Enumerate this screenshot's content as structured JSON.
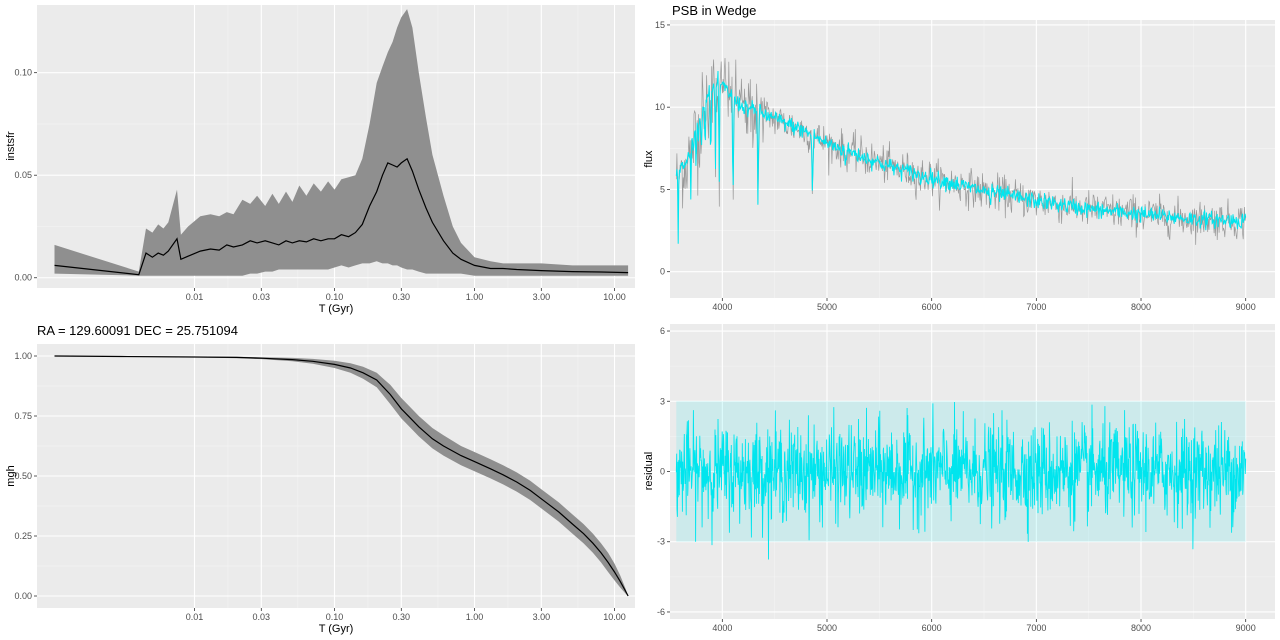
{
  "colors": {
    "panel": "#ebebeb",
    "ribbon": "#8f8f8f",
    "median": "#000000",
    "observed": "#999999",
    "model": "#00e5ee"
  },
  "chart_data": [
    {
      "id": "instsfr",
      "type": "area",
      "title": "",
      "xlabel": "T (Gyr)",
      "ylabel": "instsfr",
      "xscale": "log",
      "xlim": [
        0.00075,
        14.0
      ],
      "ylim": [
        -0.005,
        0.133
      ],
      "xticks": [
        0.01,
        0.03,
        0.1,
        0.3,
        1.0,
        3.0,
        10.0
      ],
      "xtick_labels": [
        "0.01",
        "0.03",
        "0.10",
        "0.30",
        "1.00",
        "3.00",
        "10.00"
      ],
      "yticks": [
        0.0,
        0.05,
        0.1
      ],
      "ytick_labels": [
        "0.00",
        "0.05",
        "0.10"
      ],
      "grid": true,
      "x": [
        0.001,
        0.004,
        0.0045,
        0.005,
        0.0055,
        0.006,
        0.0065,
        0.0075,
        0.008,
        0.009,
        0.011,
        0.013,
        0.015,
        0.017,
        0.019,
        0.022,
        0.025,
        0.028,
        0.032,
        0.036,
        0.04,
        0.045,
        0.05,
        0.056,
        0.063,
        0.071,
        0.08,
        0.09,
        0.1,
        0.112,
        0.126,
        0.141,
        0.158,
        0.178,
        0.2,
        0.22,
        0.24,
        0.26,
        0.28,
        0.3,
        0.33,
        0.36,
        0.4,
        0.45,
        0.5,
        0.6,
        0.7,
        0.8,
        1.0,
        1.3,
        1.6,
        2.0,
        3.0,
        5.0,
        8.0,
        12.5
      ],
      "median": [
        0.006,
        0.0015,
        0.012,
        0.01,
        0.012,
        0.011,
        0.013,
        0.019,
        0.009,
        0.0105,
        0.013,
        0.014,
        0.0135,
        0.016,
        0.015,
        0.016,
        0.018,
        0.017,
        0.018,
        0.017,
        0.016,
        0.018,
        0.017,
        0.018,
        0.0175,
        0.019,
        0.018,
        0.019,
        0.019,
        0.021,
        0.02,
        0.022,
        0.026,
        0.035,
        0.042,
        0.05,
        0.056,
        0.055,
        0.054,
        0.056,
        0.058,
        0.052,
        0.043,
        0.034,
        0.027,
        0.018,
        0.012,
        0.009,
        0.006,
        0.0045,
        0.0045,
        0.004,
        0.0035,
        0.003,
        0.0028,
        0.0025
      ],
      "lower": [
        0.002,
        0.001,
        0.001,
        0.001,
        0.001,
        0.001,
        0.001,
        0.001,
        0.001,
        0.001,
        0.001,
        0.001,
        0.001,
        0.001,
        0.001,
        0.001,
        0.002,
        0.002,
        0.003,
        0.003,
        0.004,
        0.004,
        0.004,
        0.004,
        0.004,
        0.004,
        0.004,
        0.004,
        0.005,
        0.006,
        0.005,
        0.006,
        0.007,
        0.007,
        0.008,
        0.007,
        0.007,
        0.006,
        0.006,
        0.005,
        0.004,
        0.004,
        0.003,
        0.002,
        0.002,
        0.002,
        0.002,
        0.002,
        0.001,
        0.001,
        0.001,
        0.001,
        0.001,
        0.001,
        0.001,
        0.001
      ],
      "upper": [
        0.016,
        0.003,
        0.024,
        0.022,
        0.026,
        0.024,
        0.027,
        0.043,
        0.021,
        0.025,
        0.03,
        0.031,
        0.03,
        0.032,
        0.031,
        0.038,
        0.036,
        0.04,
        0.035,
        0.041,
        0.036,
        0.042,
        0.037,
        0.045,
        0.04,
        0.046,
        0.042,
        0.047,
        0.043,
        0.048,
        0.049,
        0.05,
        0.058,
        0.075,
        0.095,
        0.103,
        0.11,
        0.115,
        0.122,
        0.127,
        0.131,
        0.122,
        0.1,
        0.078,
        0.06,
        0.04,
        0.025,
        0.017,
        0.01,
        0.008,
        0.007,
        0.007,
        0.007,
        0.006,
        0.006,
        0.006
      ]
    },
    {
      "id": "spectrum",
      "type": "line",
      "title": "PSB in Wedge",
      "xlabel": "",
      "ylabel": "flux",
      "xlim": [
        3500,
        9280
      ],
      "ylim": [
        -1.6,
        15.3
      ],
      "xticks": [
        4000,
        5000,
        6000,
        7000,
        8000,
        9000
      ],
      "xtick_labels": [
        "4000",
        "5000",
        "6000",
        "7000",
        "8000",
        "9000"
      ],
      "yticks": [
        0,
        5,
        10,
        15
      ],
      "ytick_labels": [
        "0",
        "5",
        "10",
        "15"
      ],
      "grid": true,
      "continuum": {
        "x": [
          3560,
          3650,
          3750,
          3850,
          3950,
          4050,
          4150,
          4300,
          4500,
          4800,
          5000,
          5300,
          5600,
          6000,
          6500,
          7000,
          7500,
          8000,
          8500,
          9000
        ],
        "y": [
          6.0,
          6.5,
          8.5,
          10.5,
          11.5,
          11.0,
          10.2,
          9.8,
          9.3,
          8.5,
          7.8,
          7.1,
          6.4,
          5.7,
          4.9,
          4.3,
          3.8,
          3.5,
          3.2,
          3.1
        ]
      },
      "absorption_lines": [
        {
          "x": 3580,
          "depth": 6.0,
          "width": 3
        },
        {
          "x": 3700,
          "depth": 3.0,
          "width": 4
        },
        {
          "x": 3750,
          "depth": 2.5,
          "width": 4
        },
        {
          "x": 3800,
          "depth": 2.5,
          "width": 4
        },
        {
          "x": 3835,
          "depth": 3.0,
          "width": 4
        },
        {
          "x": 3889,
          "depth": 4.5,
          "width": 5
        },
        {
          "x": 3934,
          "depth": 5.0,
          "width": 5
        },
        {
          "x": 3970,
          "depth": 6.0,
          "width": 5
        },
        {
          "x": 4102,
          "depth": 6.0,
          "width": 6
        },
        {
          "x": 4340,
          "depth": 5.5,
          "width": 6
        },
        {
          "x": 4861,
          "depth": 3.8,
          "width": 6
        },
        {
          "x": 5175,
          "depth": 0.6,
          "width": 10
        },
        {
          "x": 5890,
          "depth": 0.5,
          "width": 8
        },
        {
          "x": 6563,
          "depth": 0.6,
          "width": 8
        }
      ],
      "series": [
        {
          "role": "observed",
          "noise": 0.55
        },
        {
          "role": "model",
          "noise": 0.25
        }
      ]
    },
    {
      "id": "mgh",
      "type": "area",
      "title": "RA = 129.60091  DEC = 25.751094",
      "xlabel": "T (Gyr)",
      "ylabel": "mgh",
      "xscale": "log",
      "xlim": [
        0.00075,
        14.0
      ],
      "ylim": [
        -0.05,
        1.05
      ],
      "xticks": [
        0.01,
        0.03,
        0.1,
        0.3,
        1.0,
        3.0,
        10.0
      ],
      "xtick_labels": [
        "0.01",
        "0.03",
        "0.10",
        "0.30",
        "1.00",
        "3.00",
        "10.00"
      ],
      "yticks": [
        0.0,
        0.25,
        0.5,
        0.75,
        1.0
      ],
      "ytick_labels": [
        "0.00",
        "0.25",
        "0.50",
        "0.75",
        "1.00"
      ],
      "grid": true,
      "x": [
        0.001,
        0.003,
        0.01,
        0.02,
        0.03,
        0.05,
        0.07,
        0.1,
        0.13,
        0.16,
        0.2,
        0.25,
        0.3,
        0.35,
        0.4,
        0.5,
        0.6,
        0.8,
        1.0,
        1.3,
        1.6,
        2.0,
        2.5,
        3.0,
        4.0,
        5.0,
        6.0,
        7.0,
        8.0,
        9.0,
        10.0,
        11.0,
        12.0,
        12.5
      ],
      "median": [
        1.0,
        0.998,
        0.996,
        0.994,
        0.991,
        0.985,
        0.978,
        0.965,
        0.95,
        0.93,
        0.9,
        0.84,
        0.78,
        0.74,
        0.705,
        0.655,
        0.625,
        0.585,
        0.56,
        0.53,
        0.505,
        0.475,
        0.44,
        0.405,
        0.35,
        0.3,
        0.26,
        0.22,
        0.18,
        0.14,
        0.1,
        0.06,
        0.02,
        0.0
      ],
      "lower": [
        1.0,
        0.997,
        0.994,
        0.991,
        0.987,
        0.978,
        0.968,
        0.95,
        0.93,
        0.905,
        0.87,
        0.8,
        0.74,
        0.7,
        0.665,
        0.615,
        0.585,
        0.545,
        0.52,
        0.49,
        0.465,
        0.435,
        0.4,
        0.365,
        0.31,
        0.26,
        0.22,
        0.18,
        0.14,
        0.1,
        0.065,
        0.035,
        0.01,
        0.0
      ],
      "upper": [
        1.0,
        0.999,
        0.998,
        0.997,
        0.995,
        0.992,
        0.988,
        0.98,
        0.97,
        0.955,
        0.93,
        0.88,
        0.825,
        0.785,
        0.75,
        0.7,
        0.67,
        0.625,
        0.6,
        0.57,
        0.545,
        0.515,
        0.48,
        0.445,
        0.39,
        0.34,
        0.3,
        0.26,
        0.22,
        0.18,
        0.135,
        0.085,
        0.03,
        0.0
      ]
    },
    {
      "id": "residual",
      "type": "line",
      "title": "",
      "xlabel": "",
      "ylabel": "residual",
      "xlim": [
        3500,
        9280
      ],
      "ylim": [
        -6.3,
        6.3
      ],
      "xticks": [
        4000,
        5000,
        6000,
        7000,
        8000,
        9000
      ],
      "xtick_labels": [
        "4000",
        "5000",
        "6000",
        "7000",
        "8000",
        "9000"
      ],
      "yticks": [
        -6,
        -3,
        0,
        3,
        6
      ],
      "ytick_labels": [
        "-6",
        "-3",
        "0",
        "3",
        "6"
      ],
      "grid": true,
      "x_range": [
        3560,
        9000
      ],
      "noise_sigma": 1.0,
      "error_band": 3.0,
      "series": [
        {
          "role": "model"
        }
      ]
    }
  ]
}
